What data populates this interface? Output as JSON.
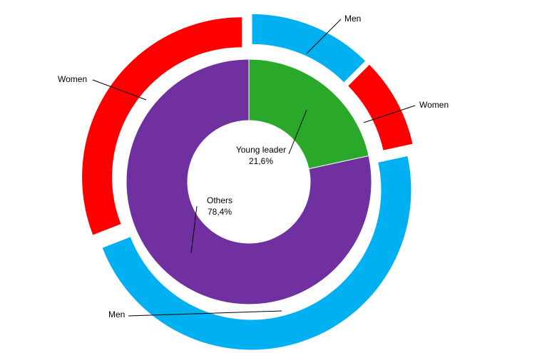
{
  "chart_data": {
    "type": "nested-donut",
    "inner": {
      "categories": [
        "Young leader",
        "Others"
      ],
      "values": [
        21.6,
        78.4
      ],
      "value_labels": [
        "21,6%",
        "78,4%"
      ],
      "colors": [
        "#2aa82a",
        "#7030a0"
      ]
    },
    "outer": {
      "categories": [
        "Men",
        "Women",
        "Men",
        "Women"
      ],
      "values": [
        12.5,
        9.1,
        47.5,
        30.9
      ],
      "colors": [
        "#00b0f0",
        "#ff0000",
        "#00b0f0",
        "#ff0000"
      ]
    }
  }
}
